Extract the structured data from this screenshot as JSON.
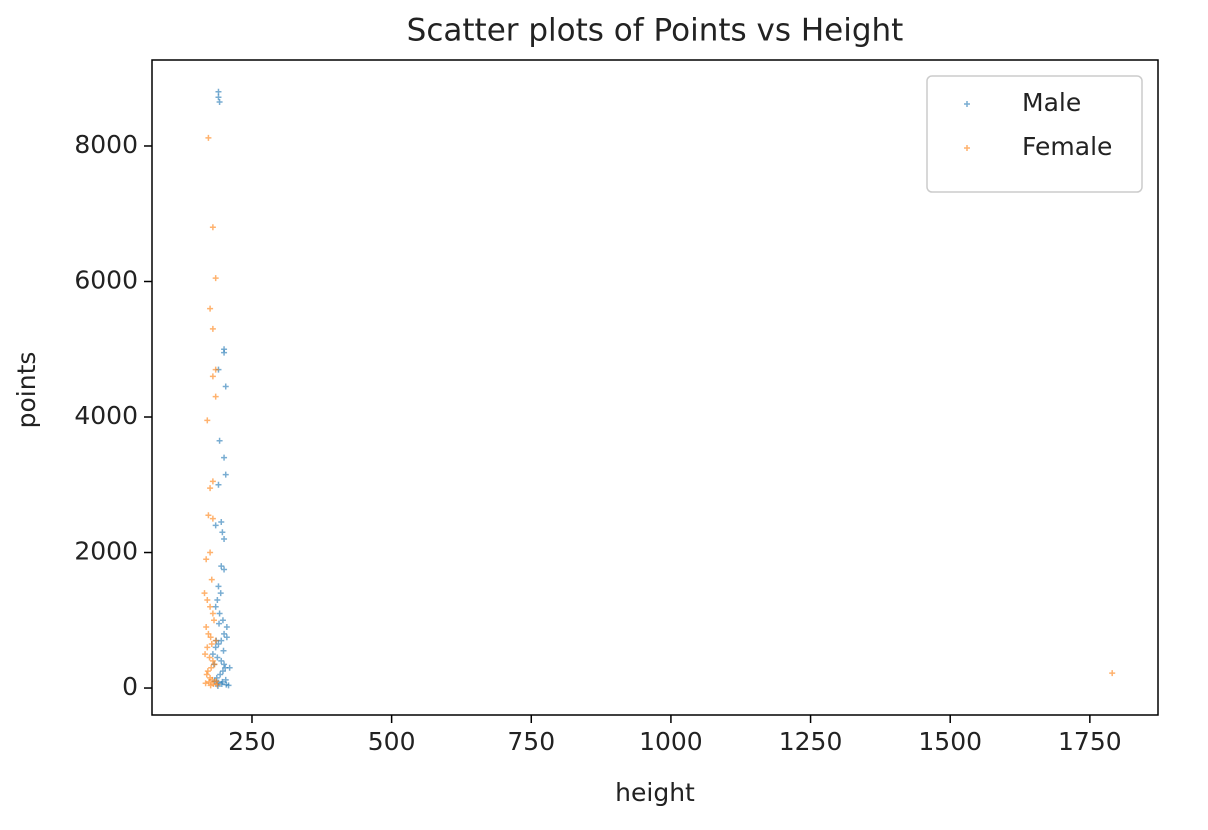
{
  "chart_data": {
    "type": "scatter",
    "title": "Scatter plots of Points vs Height",
    "x_label": "height",
    "y_label": "points",
    "legend": "upper right",
    "xlim": [
      71,
      1872
    ],
    "ylim": [
      -398,
      9269
    ],
    "xticks": [
      250,
      500,
      750,
      1000,
      1250,
      1500,
      1750
    ],
    "yticks": [
      0,
      2000,
      4000,
      6000,
      8000
    ],
    "series": [
      {
        "name": "Male",
        "color": "#1f77b4",
        "x": [
          190,
          190,
          192,
          200,
          200,
          203,
          190,
          192,
          200,
          203,
          190,
          195,
          200,
          197,
          185,
          205,
          210,
          200,
          195,
          190,
          188,
          185,
          192,
          198,
          205,
          200,
          195,
          190,
          185,
          180,
          188,
          195,
          200,
          202,
          198,
          193,
          187,
          183,
          190,
          196,
          204,
          208,
          182,
          186,
          191,
          194,
          199,
          203,
          197,
          189
        ],
        "values": [
          8800,
          8720,
          8650,
          5000,
          4950,
          4450,
          4700,
          3650,
          3400,
          3150,
          3000,
          2450,
          2200,
          2300,
          2400,
          750,
          300,
          1750,
          1800,
          1500,
          1300,
          1200,
          1100,
          1000,
          900,
          800,
          700,
          650,
          600,
          500,
          450,
          400,
          350,
          300,
          250,
          200,
          150,
          100,
          80,
          60,
          50,
          40,
          350,
          700,
          950,
          1400,
          550,
          120,
          90,
          30
        ]
      },
      {
        "name": "Female",
        "color": "#ff7f0e",
        "x": [
          172,
          180,
          185,
          175,
          180,
          185,
          180,
          185,
          170,
          180,
          175,
          172,
          180,
          168,
          175,
          178,
          165,
          170,
          175,
          180,
          182,
          168,
          172,
          176,
          185,
          178,
          170,
          166,
          174,
          180,
          183,
          177,
          171,
          169,
          175,
          179,
          186,
          173,
          167,
          181,
          188,
          176,
          1790
        ],
        "values": [
          8120,
          6800,
          6050,
          5600,
          5300,
          4700,
          4600,
          4300,
          3950,
          3050,
          2950,
          2550,
          2500,
          1900,
          2000,
          1600,
          1400,
          1300,
          1200,
          1100,
          1000,
          900,
          800,
          750,
          700,
          650,
          600,
          500,
          450,
          400,
          350,
          300,
          250,
          200,
          150,
          120,
          100,
          90,
          70,
          60,
          50,
          40,
          220
        ]
      }
    ]
  }
}
